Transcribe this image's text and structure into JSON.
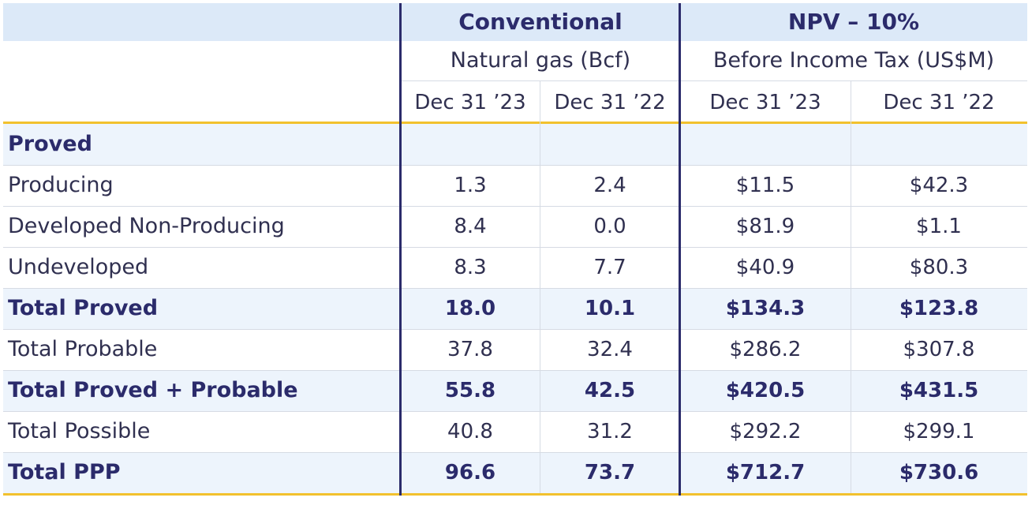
{
  "header": {
    "group1_title": "Conventional",
    "group1_subtitle": "Natural gas (Bcf)",
    "group2_title": "NPV – 10%",
    "group2_subtitle": "Before Income Tax (US$M)",
    "dates": [
      "Dec 31 ’23",
      "Dec 31 ’22",
      "Dec 31 ’23",
      "Dec 31 ’22"
    ]
  },
  "rows": [
    {
      "label": "Proved",
      "values": [
        "",
        "",
        "",
        ""
      ]
    },
    {
      "label": "Producing",
      "values": [
        "1.3",
        "2.4",
        "$11.5",
        "$42.3"
      ]
    },
    {
      "label": "Developed Non-Producing",
      "values": [
        "8.4",
        "0.0",
        "$81.9",
        "$1.1"
      ]
    },
    {
      "label": "Undeveloped",
      "values": [
        "8.3",
        "7.7",
        "$40.9",
        "$80.3"
      ]
    },
    {
      "label": "Total Proved",
      "values": [
        "18.0",
        "10.1",
        "$134.3",
        "$123.8"
      ]
    },
    {
      "label": "Total Probable",
      "values": [
        "37.8",
        "32.4",
        "$286.2",
        "$307.8"
      ]
    },
    {
      "label": "Total Proved + Probable",
      "values": [
        "55.8",
        "42.5",
        "$420.5",
        "$431.5"
      ]
    },
    {
      "label": "Total Possible",
      "values": [
        "40.8",
        "31.2",
        "$292.2",
        "$299.1"
      ]
    },
    {
      "label": "Total PPP",
      "values": [
        "96.6",
        "73.7",
        "$712.7",
        "$730.6"
      ]
    }
  ],
  "colors": {
    "header_fill": "#dce9f8",
    "row_shade": "#edf4fc",
    "text": "#303050",
    "accent_navy": "#2b2b6b",
    "gold_rule": "#f2c12e"
  }
}
